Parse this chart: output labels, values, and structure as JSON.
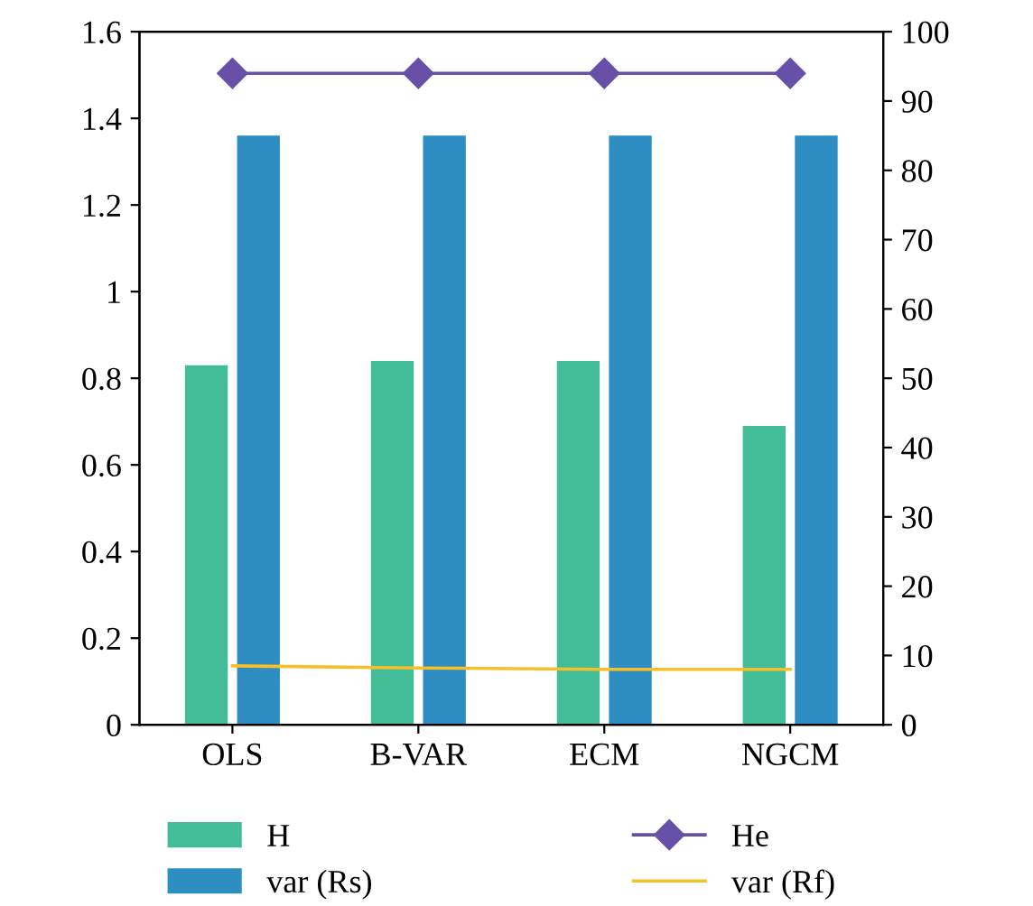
{
  "chart_data": {
    "type": "bar",
    "categories": [
      "OLS",
      "B-VAR",
      "ECM",
      "NGCM"
    ],
    "series": [
      {
        "name": "H",
        "color": "#43bd98",
        "values": [
          0.83,
          0.84,
          0.84,
          0.69
        ]
      },
      {
        "name": "var (Rs)",
        "color": "#2e8ec1",
        "values": [
          1.36,
          1.36,
          1.36,
          1.36
        ]
      },
      {
        "name": "He",
        "type": "line",
        "axis": "y2",
        "color": "#6650a8",
        "marker": "diamond",
        "values": [
          94,
          94,
          94,
          94
        ]
      },
      {
        "name": "var (Rf)",
        "type": "line",
        "axis": "y2",
        "color": "#f5c02a",
        "values": [
          8.5,
          8.2,
          8,
          8
        ]
      }
    ],
    "ylim": [
      0,
      1.6
    ],
    "yticks": [
      0,
      0.2,
      0.4,
      0.6,
      0.8,
      1,
      1.2,
      1.4,
      1.6
    ],
    "y2lim": [
      0,
      100
    ],
    "y2ticks": [
      0,
      10,
      20,
      30,
      40,
      50,
      60,
      70,
      80,
      90,
      100
    ],
    "grid": false,
    "legend": "bottom"
  }
}
